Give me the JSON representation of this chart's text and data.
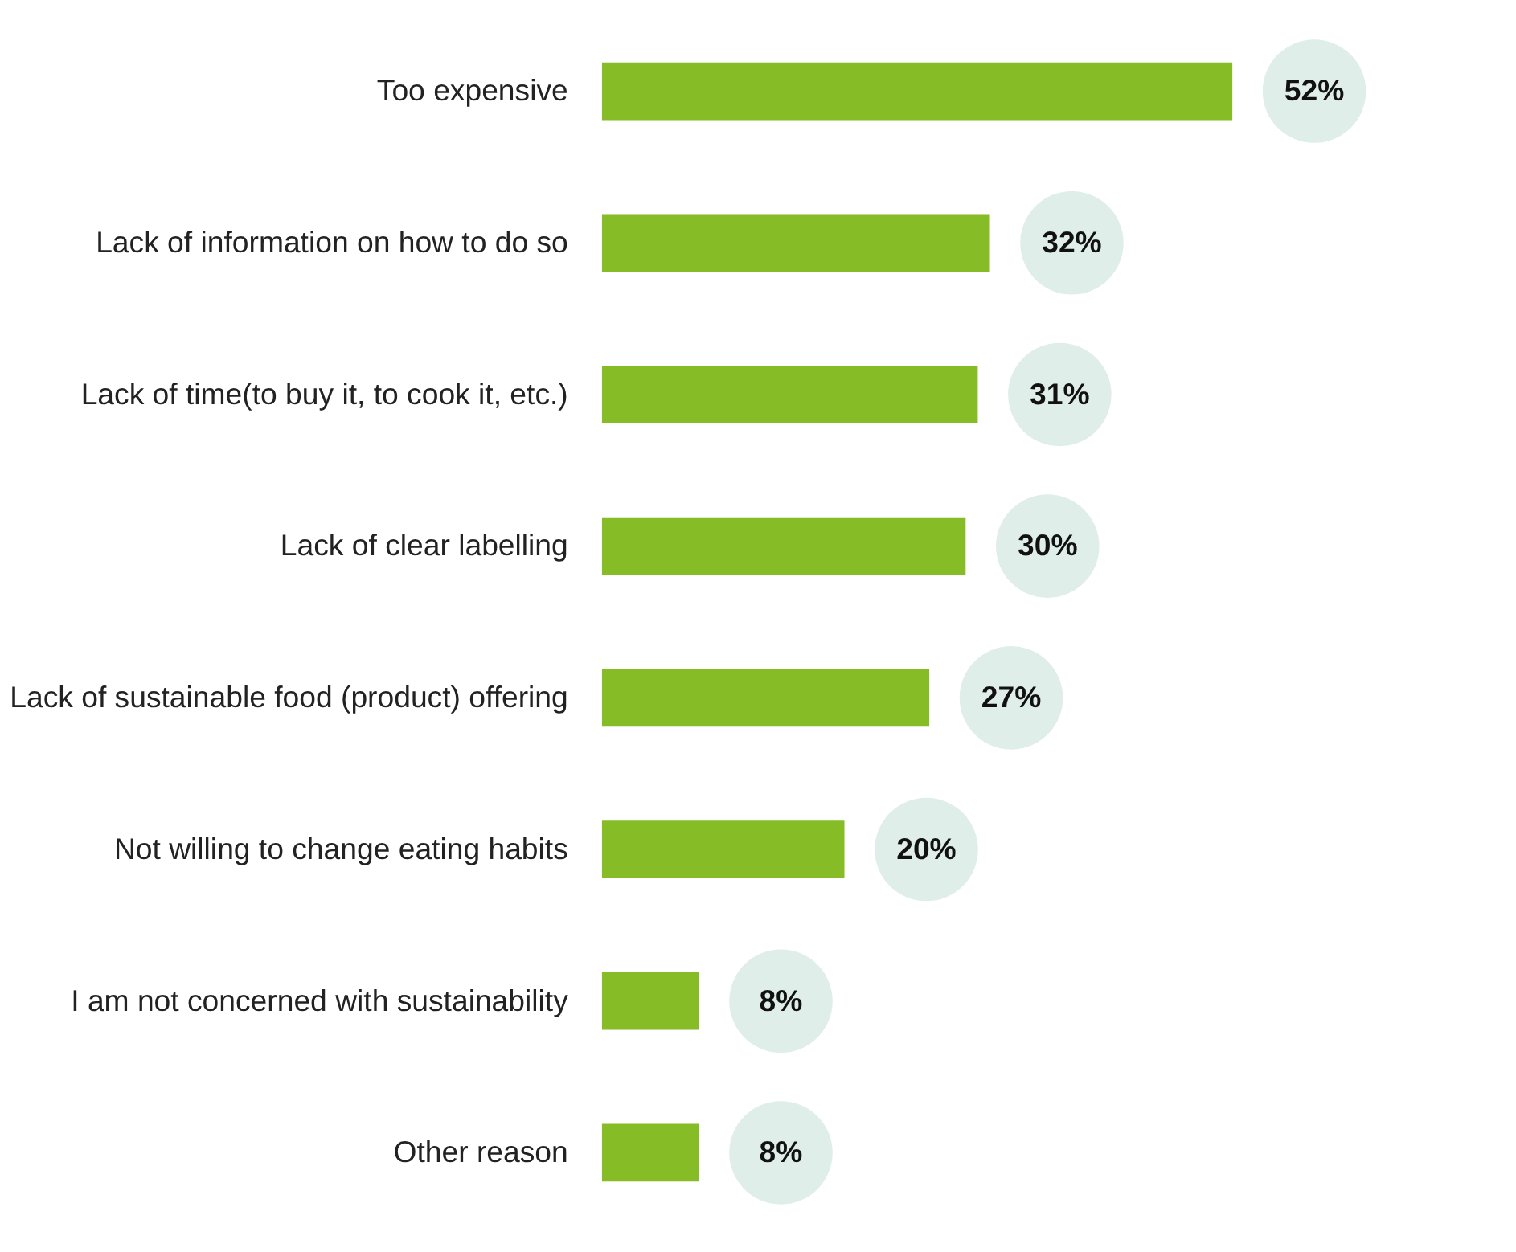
{
  "chart_data": {
    "type": "bar",
    "orientation": "horizontal",
    "categories": [
      "Too expensive",
      "Lack of information on how to do so",
      "Lack of time(to buy it, to cook it, etc.)",
      "Lack of clear labelling",
      "Lack of sustainable food (product) offering",
      "Not willing to change eating habits",
      "I am not concerned with sustainability",
      "Other reason"
    ],
    "values": [
      52,
      32,
      31,
      30,
      27,
      20,
      8,
      8
    ],
    "value_labels": [
      "52%",
      "32%",
      "31%",
      "30%",
      "27%",
      "20%",
      "8%",
      "8%"
    ],
    "color": "#86bc25",
    "grid": false
  }
}
